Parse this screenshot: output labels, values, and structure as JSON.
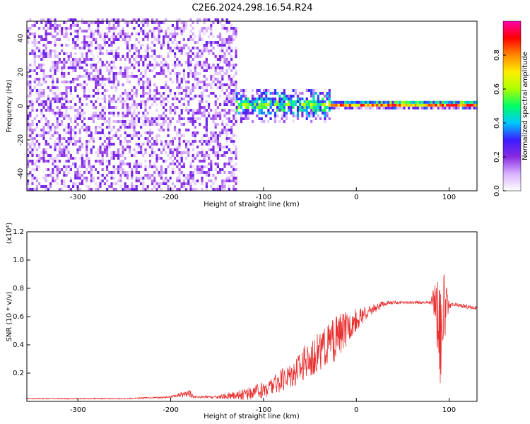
{
  "title": "C2E6.2024.298.16.54.R24",
  "chart_data": [
    {
      "type": "heatmap",
      "xlabel": "Height of straight line (km)",
      "ylabel": "Frequency (Hz)",
      "xlim": [
        -355,
        130
      ],
      "ylim": [
        -50,
        50
      ],
      "x_ticks": [
        -300,
        -200,
        -100,
        0,
        100
      ],
      "y_ticks": [
        -40,
        -20,
        0,
        20,
        40
      ],
      "colorbar": {
        "label": "Normalized spectral amplitude",
        "range": [
          0.0,
          1.0
        ],
        "ticks": [
          0.0,
          0.2,
          0.4,
          0.6,
          0.8
        ],
        "colors": [
          "#ffffff",
          "#d9b3ff",
          "#8a2be2",
          "#3b1cff",
          "#00c8ff",
          "#00ff66",
          "#aaff00",
          "#ffee00",
          "#ff8800",
          "#ff0000",
          "#ff00aa"
        ]
      },
      "regions": [
        {
          "name": "noise",
          "x_range": [
            -355,
            -130
          ],
          "freq_spread": [
            -50,
            50
          ],
          "amplitude": 0.1
        },
        {
          "name": "transition",
          "x_range": [
            -130,
            -30
          ],
          "freq_spread": [
            -10,
            10
          ],
          "amplitude": 0.5
        },
        {
          "name": "carrier",
          "x_range": [
            -30,
            130
          ],
          "freq_spread": [
            -2,
            2
          ],
          "amplitude": 0.9
        }
      ]
    },
    {
      "type": "line",
      "xlabel": "Height of straight line (km)",
      "ylabel": "SNR (10 * v/v)",
      "y_scale_label": "(x10⁴)",
      "color": "#e83030",
      "xlim": [
        -355,
        130
      ],
      "ylim": [
        0,
        1.2
      ],
      "x_ticks": [
        -300,
        -200,
        -100,
        0,
        100
      ],
      "y_ticks": [
        0.2,
        0.4,
        0.6,
        0.8,
        1.0,
        1.2
      ],
      "x": [
        -355,
        -300,
        -250,
        -200,
        -180,
        -175,
        -150,
        -120,
        -100,
        -80,
        -60,
        -40,
        -20,
        -10,
        0,
        10,
        20,
        30,
        40,
        60,
        80,
        85,
        90,
        95,
        100,
        110,
        120,
        130
      ],
      "y": [
        0.02,
        0.02,
        0.02,
        0.03,
        0.06,
        0.03,
        0.03,
        0.05,
        0.08,
        0.15,
        0.25,
        0.35,
        0.45,
        0.52,
        0.58,
        0.62,
        0.66,
        0.69,
        0.7,
        0.7,
        0.7,
        0.72,
        0.5,
        0.65,
        0.68,
        0.68,
        0.67,
        0.66
      ],
      "noise_amplitude": [
        0.004,
        0.004,
        0.004,
        0.006,
        0.03,
        0.006,
        0.01,
        0.04,
        0.06,
        0.08,
        0.12,
        0.14,
        0.16,
        0.12,
        0.08,
        0.05,
        0.03,
        0.02,
        0.01,
        0.01,
        0.01,
        0.15,
        0.45,
        0.25,
        0.02,
        0.015,
        0.015,
        0.015
      ]
    }
  ]
}
